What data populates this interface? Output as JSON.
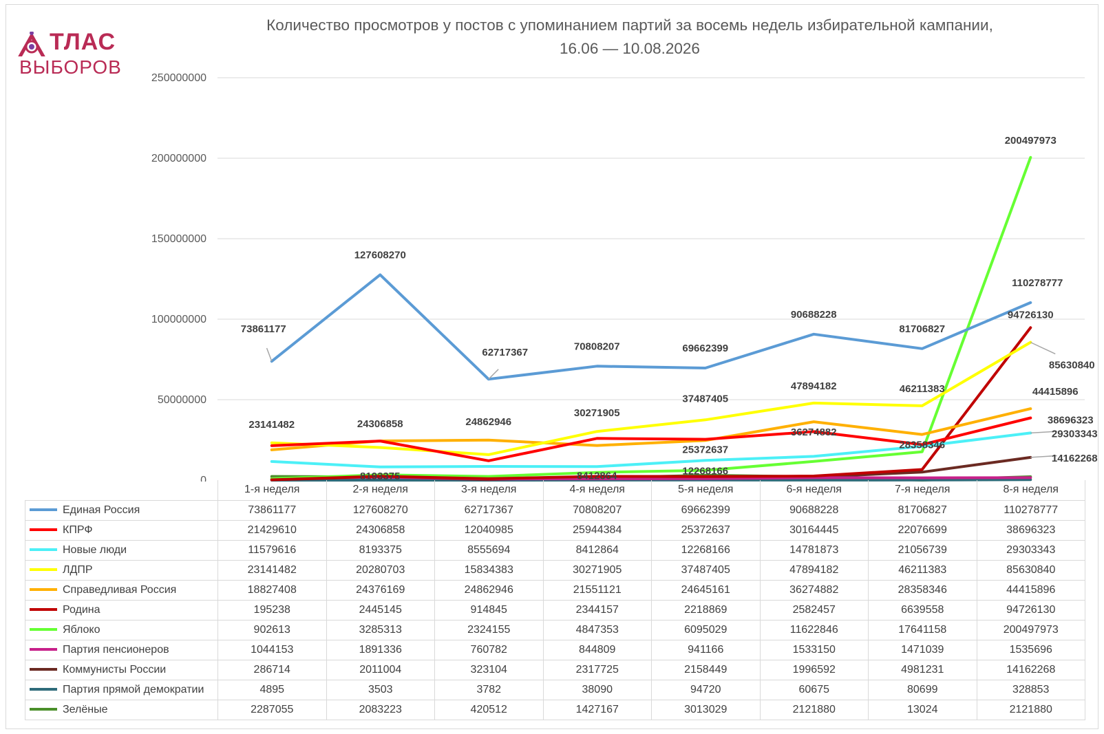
{
  "logo": {
    "word": "ТЛАС",
    "sub": "ВЫБОРОВ"
  },
  "chart_data": {
    "type": "line",
    "title": "Количество просмотров у постов с упоминанием партий за восемь недель избирательной кампании,",
    "subtitle": "16.06 — 10.08.2026",
    "xlabel": "",
    "ylabel": "",
    "ylim": [
      0,
      250000000
    ],
    "yticks": [
      "0",
      "50000000",
      "100000000",
      "150000000",
      "200000000",
      "250000000"
    ],
    "grid": true,
    "legend": "data-table",
    "categories": [
      "1-я неделя",
      "2-я неделя",
      "3-я неделя",
      "4-я неделя",
      "5-я неделя",
      "6-я неделя",
      "7-я неделя",
      "8-я неделя"
    ],
    "series": [
      {
        "name": "Единая Россия",
        "color": "#5b9bd5",
        "values": [
          73861177,
          127608270,
          62717367,
          70808207,
          69662399,
          90688228,
          81706827,
          110278777
        ]
      },
      {
        "name": "КПРФ",
        "color": "#ff0000",
        "values": [
          21429610,
          24306858,
          12040985,
          25944384,
          25372637,
          30164445,
          22076699,
          38696323
        ]
      },
      {
        "name": "Новые люди",
        "color": "#4cf0f7",
        "values": [
          11579616,
          8193375,
          8555694,
          8412864,
          12268166,
          14781873,
          21056739,
          29303343
        ]
      },
      {
        "name": "ЛДПР",
        "color": "#ffff00",
        "values": [
          23141482,
          20280703,
          15834383,
          30271905,
          37487405,
          47894182,
          46211383,
          85630840
        ]
      },
      {
        "name": "Справедливая Россия",
        "color": "#ffb000",
        "values": [
          18827408,
          24376169,
          24862946,
          21551121,
          24645161,
          36274882,
          28358346,
          44415896
        ]
      },
      {
        "name": "Родина",
        "color": "#c00000",
        "values": [
          195238,
          2445145,
          914845,
          2344157,
          2218869,
          2582457,
          6639558,
          94726130
        ]
      },
      {
        "name": "Яблоко",
        "color": "#66ff33",
        "values": [
          902613,
          3285313,
          2324155,
          4847353,
          6095029,
          11622846,
          17641158,
          200497973
        ]
      },
      {
        "name": "Партия пенсионеров",
        "color": "#c7218a",
        "values": [
          1044153,
          1891336,
          760782,
          844809,
          941166,
          1533150,
          1471039,
          1535696
        ]
      },
      {
        "name": "Коммунисты России",
        "color": "#6b2a22",
        "values": [
          286714,
          2011004,
          323104,
          2317725,
          2158449,
          1996592,
          4981231,
          14162268
        ]
      },
      {
        "name": "Партия прямой демократии",
        "color": "#2e6b7a",
        "values": [
          4895,
          3503,
          3782,
          38090,
          94720,
          60675,
          80699,
          328853
        ]
      },
      {
        "name": "Зелёные",
        "color": "#4a8f2a",
        "values": [
          2287055,
          2083223,
          420512,
          1427167,
          3013029,
          2121880,
          13024,
          2121880
        ]
      }
    ],
    "annotations": [
      {
        "series": 0,
        "point": 0,
        "text": "73861177"
      },
      {
        "series": 0,
        "point": 1,
        "text": "127608270"
      },
      {
        "series": 0,
        "point": 2,
        "text": "62717367"
      },
      {
        "series": 0,
        "point": 3,
        "text": "70808207"
      },
      {
        "series": 0,
        "point": 4,
        "text": "69662399"
      },
      {
        "series": 0,
        "point": 5,
        "text": "90688228"
      },
      {
        "series": 0,
        "point": 6,
        "text": "81706827"
      },
      {
        "series": 0,
        "point": 7,
        "text": "110278777"
      },
      {
        "series": 3,
        "point": 0,
        "text": "23141482"
      },
      {
        "series": 1,
        "point": 1,
        "text": "24306858"
      },
      {
        "series": 4,
        "point": 2,
        "text": "24862946"
      },
      {
        "series": 3,
        "point": 3,
        "text": "30271905"
      },
      {
        "series": 3,
        "point": 4,
        "text": "37487405"
      },
      {
        "series": 3,
        "point": 5,
        "text": "47894182"
      },
      {
        "series": 3,
        "point": 6,
        "text": "46211383"
      },
      {
        "series": 2,
        "point": 1,
        "text": "8193375"
      },
      {
        "series": 2,
        "point": 3,
        "text": "8412864"
      },
      {
        "series": 1,
        "point": 4,
        "text": "25372637"
      },
      {
        "series": 2,
        "point": 4,
        "text": "12268166"
      },
      {
        "series": 4,
        "point": 5,
        "text": "36274882"
      },
      {
        "series": 4,
        "point": 6,
        "text": "28358346"
      },
      {
        "series": 6,
        "point": 7,
        "text": "200497973"
      },
      {
        "series": 5,
        "point": 7,
        "text": "94726130"
      },
      {
        "series": 3,
        "point": 7,
        "text": "85630840"
      },
      {
        "series": 4,
        "point": 7,
        "text": "44415896"
      },
      {
        "series": 1,
        "point": 7,
        "text": "38696323"
      },
      {
        "series": 2,
        "point": 7,
        "text": "29303343"
      },
      {
        "series": 8,
        "point": 7,
        "text": "14162268"
      }
    ]
  }
}
